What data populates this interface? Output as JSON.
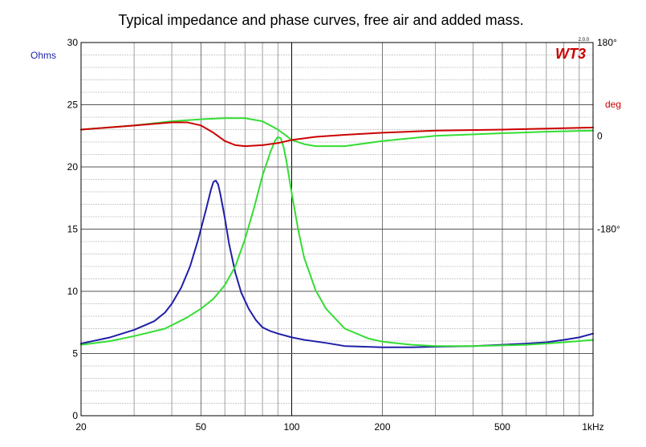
{
  "chart_data": {
    "type": "line",
    "title": "Typical impedance and phase curves, free air and added mass.",
    "logo": "WT3",
    "logo_version": "2.0.0",
    "colors": {
      "logo": "#cc0000",
      "left_unit": "#2222aa",
      "right_unit": "#cc0000"
    },
    "x_scale": "log",
    "xlim": [
      20,
      1000
    ],
    "x_ticks": [
      {
        "value": 20,
        "label": "20"
      },
      {
        "value": 50,
        "label": "50"
      },
      {
        "value": 100,
        "label": "100"
      },
      {
        "value": 200,
        "label": "200"
      },
      {
        "value": 500,
        "label": "500"
      },
      {
        "value": 1000,
        "label": "1kHz"
      }
    ],
    "y_left": {
      "unit_label": "Ohms",
      "ylim": [
        0,
        30
      ],
      "ticks": [
        {
          "value": 0,
          "label": "0"
        },
        {
          "value": 5,
          "label": "5"
        },
        {
          "value": 10,
          "label": "10"
        },
        {
          "value": 15,
          "label": "15"
        },
        {
          "value": 20,
          "label": "20"
        },
        {
          "value": 25,
          "label": "25"
        },
        {
          "value": 30,
          "label": "30"
        }
      ]
    },
    "y_right": {
      "unit_label": "deg",
      "ylim": [
        -540,
        180
      ],
      "ticks": [
        {
          "value": 180,
          "label": "180°"
        },
        {
          "value": 0,
          "label": "0"
        },
        {
          "value": -180,
          "label": "-180°"
        }
      ]
    },
    "grid": true,
    "series": [
      {
        "color": "#1f1fa8",
        "axis": "left",
        "x": [
          20,
          25,
          30,
          35,
          38,
          40,
          43,
          46,
          49,
          52,
          54,
          55,
          56,
          57,
          58,
          60,
          62,
          65,
          68,
          72,
          76,
          80,
          85,
          90,
          100,
          110,
          130,
          150,
          200,
          250,
          300,
          400,
          500,
          600,
          700,
          800,
          900,
          1000
        ],
        "y": [
          5.8,
          6.3,
          6.9,
          7.6,
          8.3,
          9.0,
          10.3,
          12.0,
          14.2,
          16.6,
          18.2,
          18.8,
          18.9,
          18.6,
          17.8,
          15.9,
          13.8,
          11.5,
          9.9,
          8.6,
          7.7,
          7.1,
          6.8,
          6.6,
          6.3,
          6.1,
          5.85,
          5.6,
          5.5,
          5.5,
          5.55,
          5.6,
          5.7,
          5.8,
          5.9,
          6.1,
          6.3,
          6.6
        ]
      },
      {
        "color": "#33dd33",
        "axis": "left",
        "x": [
          20,
          25,
          30,
          38,
          45,
          50,
          55,
          60,
          65,
          70,
          75,
          80,
          85,
          88,
          90,
          92,
          94,
          96,
          98,
          100,
          105,
          110,
          120,
          130,
          150,
          180,
          200,
          250,
          300,
          400,
          500,
          600,
          700,
          800,
          900,
          1000
        ],
        "y": [
          5.7,
          6.0,
          6.4,
          7.0,
          7.9,
          8.6,
          9.4,
          10.5,
          12.0,
          14.2,
          16.7,
          19.3,
          21.2,
          22.1,
          22.4,
          22.3,
          21.6,
          20.5,
          19.2,
          17.9,
          15.0,
          12.7,
          10.1,
          8.6,
          7.0,
          6.2,
          5.95,
          5.7,
          5.6,
          5.6,
          5.65,
          5.7,
          5.8,
          5.9,
          6.0,
          6.1
        ]
      },
      {
        "color": "#33dd33",
        "axis": "right",
        "x": [
          20,
          30,
          40,
          50,
          60,
          70,
          80,
          85,
          90,
          95,
          100,
          110,
          120,
          130,
          150,
          200,
          300,
          500,
          700,
          1000
        ],
        "y": [
          12,
          20,
          28,
          32,
          34,
          34,
          28,
          20,
          12,
          2,
          -8,
          -16,
          -20,
          -20,
          -20,
          -10,
          0,
          5,
          8,
          10
        ]
      },
      {
        "color": "#cc0000",
        "axis": "right",
        "x": [
          20,
          30,
          40,
          45,
          50,
          55,
          60,
          65,
          70,
          80,
          90,
          100,
          120,
          150,
          200,
          300,
          500,
          700,
          1000
        ],
        "y": [
          12,
          20,
          26,
          26,
          20,
          6,
          -10,
          -18,
          -20,
          -18,
          -14,
          -8,
          -2,
          2,
          6,
          10,
          12,
          14,
          16
        ]
      }
    ]
  }
}
